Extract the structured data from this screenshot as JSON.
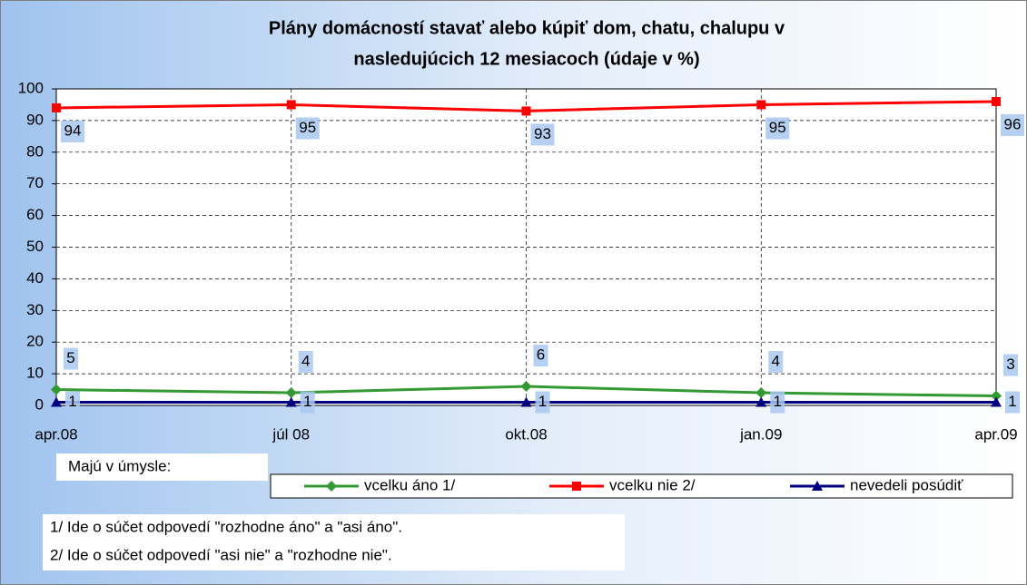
{
  "chart_data": {
    "type": "line",
    "title": [
      "Plány domácností stavať alebo kúpiť dom, chatu, chalupu v",
      "nasledujúcich 12 mesiacoch (údaje v %)"
    ],
    "categories": [
      "apr.08",
      "júl 08",
      "okt.08",
      "jan.09",
      "apr.09"
    ],
    "series": [
      {
        "name": "vcelku áno 1/",
        "color": "#339933",
        "marker": "diamond",
        "values": [
          5,
          4,
          6,
          4,
          3
        ]
      },
      {
        "name": "vcelku nie 2/",
        "color": "#ff0000",
        "marker": "square",
        "values": [
          94,
          95,
          93,
          95,
          96
        ]
      },
      {
        "name": "nevedeli posúdiť",
        "color": "#000080",
        "marker": "triangle",
        "values": [
          1,
          1,
          1,
          1,
          1
        ]
      }
    ],
    "ylim": [
      0,
      100
    ],
    "yticks": [
      0,
      10,
      20,
      30,
      40,
      50,
      60,
      70,
      80,
      90,
      100
    ],
    "grid": true,
    "legend_label": "Majú v úmysle:",
    "notes": [
      "1/ Ide o súčet odpovedí \"rozhodne áno\" a \"asi áno\".",
      "2/ Ide o súčet odpovedí \"asi nie\" a \"rozhodne nie\"."
    ]
  }
}
